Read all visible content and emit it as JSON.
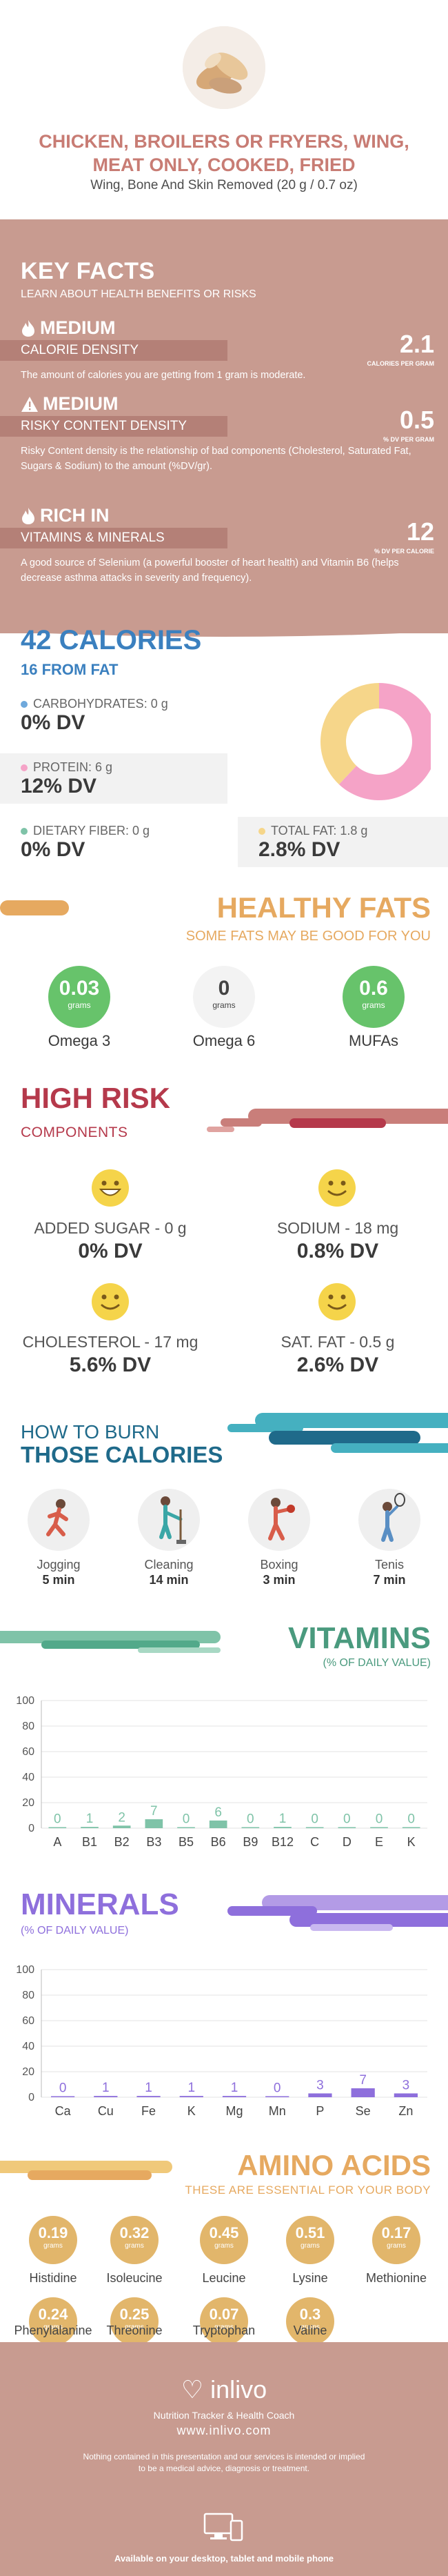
{
  "header": {
    "title": "CHICKEN, BROILERS OR FRYERS, WING, MEAT ONLY, COOKED, FRIED",
    "subtitle": "Wing, Bone And Skin Removed (20 g / 0.7 oz)"
  },
  "key_facts": {
    "title": "KEY FACTS",
    "subtitle": "LEARN ABOUT HEALTH BENEFITS OR RISKS",
    "items": [
      {
        "level": "MEDIUM",
        "band": "CALORIE DENSITY",
        "value": "2.1",
        "unit": "CALORIES PER GRAM",
        "desc": "The amount of calories you are getting from 1 gram is moderate.",
        "icon": "flame-icon"
      },
      {
        "level": "MEDIUM",
        "band": "RISKY CONTENT DENSITY",
        "value": "0.5",
        "unit": "% DV PER GRAM",
        "desc": "Risky Content density is the relationship of bad components (Cholesterol, Saturated Fat, Sugars & Sodium) to the amount (%DV/gr).",
        "icon": "warning-icon"
      },
      {
        "level": "RICH IN",
        "band": "VITAMINS & MINERALS",
        "value": "12",
        "unit": "% DV PER CALORIE",
        "desc": "A good source of Selenium (a powerful booster of heart health) and Vitamin B6 (helps decrease asthma attacks in severity and frequency).",
        "icon": "flame-icon"
      }
    ]
  },
  "calories": {
    "title": "42 CALORIES",
    "subtitle": "16 FROM FAT",
    "nutrients": [
      {
        "label": "CARBOHYDRATES: 0 g",
        "dv": "0% DV",
        "color": "#6fa9dc"
      },
      {
        "label": "PROTEIN: 6 g",
        "dv": "12% DV",
        "color": "#f5a3c7"
      },
      {
        "label": "DIETARY FIBER: 0 g",
        "dv": "0% DV",
        "color": "#7fc3a8"
      },
      {
        "label": "TOTAL FAT: 1.8 g",
        "dv": "2.8% DV",
        "color": "#f6d68a"
      }
    ],
    "donut": [
      {
        "name": "Protein",
        "value": 62,
        "color": "#f5a3c7"
      },
      {
        "name": "Fat",
        "value": 38,
        "color": "#f6d68a"
      }
    ]
  },
  "healthy_fats": {
    "title": "HEALTHY FATS",
    "subtitle": "SOME FATS MAY BE GOOD FOR YOU",
    "items": [
      {
        "value": "0.03",
        "unit": "grams",
        "name": "Omega 3",
        "color": "#67c36b",
        "text_color": "#ffffff"
      },
      {
        "value": "0",
        "unit": "grams",
        "name": "Omega 6",
        "color": "#f3f3f3",
        "text_color": "#444444"
      },
      {
        "value": "0.6",
        "unit": "grams",
        "name": "MUFAs",
        "color": "#67c36b",
        "text_color": "#ffffff"
      }
    ]
  },
  "high_risk": {
    "title": "HIGH RISK",
    "subtitle": "COMPONENTS",
    "items": [
      {
        "label": "ADDED SUGAR - 0 g",
        "dv": "0% DV",
        "face": "grin-icon"
      },
      {
        "label": "SODIUM - 18 mg",
        "dv": "0.8% DV",
        "face": "smile-icon"
      },
      {
        "label": "CHOLESTEROL - 17 mg",
        "dv": "5.6% DV",
        "face": "smile-icon"
      },
      {
        "label": "SAT. FAT - 0.5 g",
        "dv": "2.6% DV",
        "face": "smile-icon"
      }
    ]
  },
  "burn": {
    "title1": "HOW TO BURN",
    "title2": "THOSE CALORIES",
    "activities": [
      {
        "name": "Jogging",
        "time": "5 min",
        "icon": "jogging-icon"
      },
      {
        "name": "Cleaning",
        "time": "14 min",
        "icon": "cleaning-icon"
      },
      {
        "name": "Boxing",
        "time": "3 min",
        "icon": "boxing-icon"
      },
      {
        "name": "Tenis",
        "time": "7 min",
        "icon": "tennis-icon"
      }
    ]
  },
  "vitamins": {
    "title": "VITAMINS",
    "subtitle": "(% OF DAILY VALUE)",
    "chart_data": {
      "type": "bar",
      "categories": [
        "A",
        "B1",
        "B2",
        "B3",
        "B5",
        "B6",
        "B9",
        "B12",
        "C",
        "D",
        "E",
        "K"
      ],
      "values": [
        0,
        1,
        2,
        7,
        0,
        6,
        0,
        1,
        0,
        0,
        0,
        0
      ],
      "ylim": [
        0,
        100
      ],
      "yticks": [
        0,
        20,
        40,
        60,
        80,
        100
      ],
      "color": "#7fc3a8"
    }
  },
  "minerals": {
    "title": "MINERALS",
    "subtitle": "(% OF DAILY VALUE)",
    "chart_data": {
      "type": "bar",
      "categories": [
        "Ca",
        "Cu",
        "Fe",
        "K",
        "Mg",
        "Mn",
        "P",
        "Se",
        "Zn"
      ],
      "values": [
        0,
        1,
        1,
        1,
        1,
        0,
        3,
        7,
        3
      ],
      "ylim": [
        0,
        100
      ],
      "yticks": [
        0,
        20,
        40,
        60,
        80,
        100
      ],
      "color": "#8e6fdc"
    }
  },
  "amino_acids": {
    "title": "AMINO ACIDS",
    "subtitle": "THESE ARE ESSENTIAL FOR YOUR BODY",
    "unit": "grams",
    "items": [
      {
        "value": "0.19",
        "name": "Histidine"
      },
      {
        "value": "0.32",
        "name": "Isoleucine"
      },
      {
        "value": "0.45",
        "name": "Leucine"
      },
      {
        "value": "0.51",
        "name": "Lysine"
      },
      {
        "value": "0.17",
        "name": "Methionine"
      },
      {
        "value": "0.24",
        "name": "Phenylalanine"
      },
      {
        "value": "0.25",
        "name": "Threonine"
      },
      {
        "value": "0.07",
        "name": "Tryptophan"
      },
      {
        "value": "0.3",
        "name": "Valine"
      }
    ]
  },
  "footer": {
    "brand": "inlivo",
    "tagline": "Nutrition Tracker & Health Coach",
    "url": "www.inlivo.com",
    "disclaimer": "Nothing contained in this presentation and our services is intended or implied to be a medical advice, diagnosis or treatment.",
    "available": "Available on your desktop, tablet and mobile phone"
  }
}
